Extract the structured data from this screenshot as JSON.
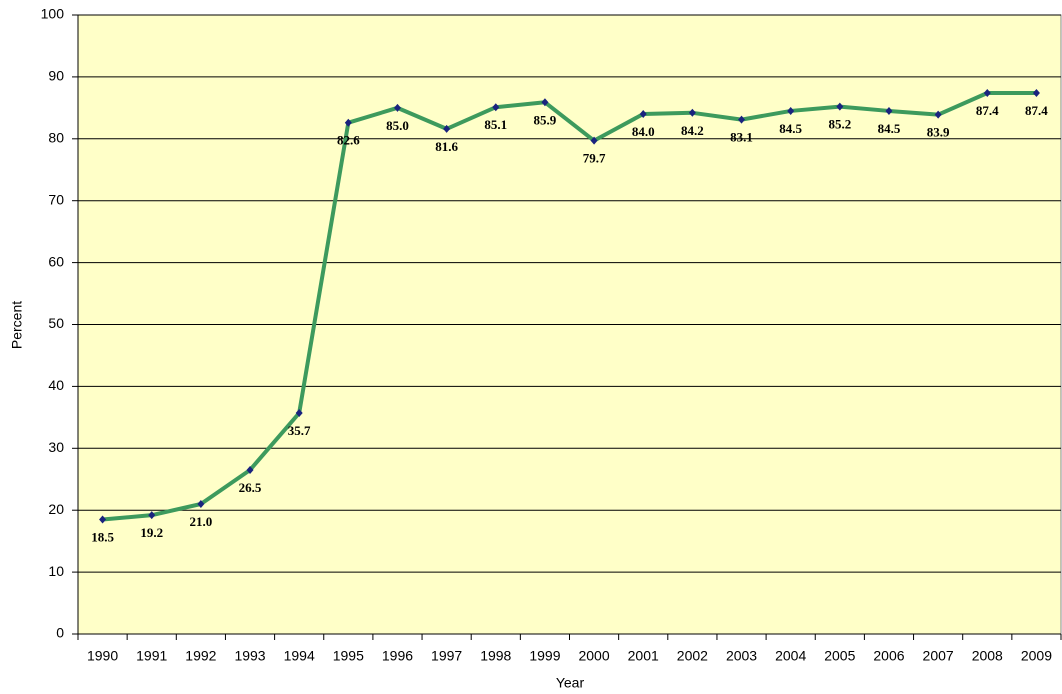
{
  "chart_data": {
    "type": "line",
    "x_label": "Year",
    "y_label": "Percent",
    "categories": [
      "1990",
      "1991",
      "1992",
      "1993",
      "1994",
      "1995",
      "1996",
      "1997",
      "1998",
      "1999",
      "2000",
      "2001",
      "2002",
      "2003",
      "2004",
      "2005",
      "2006",
      "2007",
      "2008",
      "2009"
    ],
    "series": [
      {
        "color": "#3d9a5d",
        "marker_color": "#1a237e",
        "values": [
          18.5,
          19.2,
          21.0,
          26.5,
          35.7,
          82.6,
          85.0,
          81.6,
          85.1,
          85.9,
          79.7,
          84.0,
          84.2,
          83.1,
          84.5,
          85.2,
          84.5,
          83.9,
          87.4,
          87.4
        ],
        "value_labels": [
          "18.5",
          "19.2",
          "21.0",
          "26.5",
          "35.7",
          "82.6",
          "85.0",
          "81.6",
          "85.1",
          "85.9",
          "79.7",
          "84.0",
          "84.2",
          "83.1",
          "84.5",
          "85.2",
          "84.5",
          "83.9",
          "87.4",
          "87.4"
        ]
      }
    ],
    "ylim": [
      0,
      100
    ],
    "yticks": [
      0,
      10,
      20,
      30,
      40,
      50,
      60,
      70,
      80,
      90,
      100
    ],
    "grid": true,
    "background": "#ffffc8"
  }
}
